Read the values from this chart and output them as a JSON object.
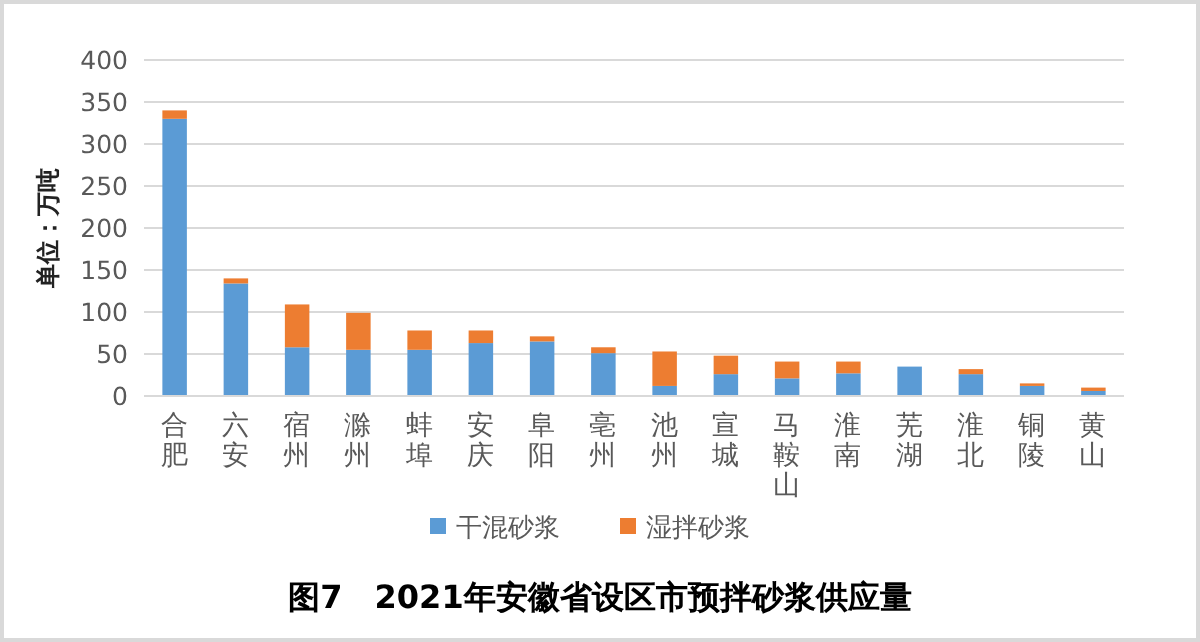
{
  "chart_data": {
    "type": "bar",
    "title": "图7　2021年安徽省设区市预拌砂浆供应量",
    "ylabel": "单位：万吨",
    "categories": [
      "合肥",
      "六安",
      "宿州",
      "滁州",
      "蚌埠",
      "安庆",
      "阜阳",
      "亳州",
      "池州",
      "宣城",
      "马鞍山",
      "淮南",
      "芜湖",
      "淮北",
      "铜陵",
      "黄山"
    ],
    "series": [
      {
        "name": "干混砂浆",
        "color": "#5b9bd5",
        "values": [
          330,
          134,
          58,
          55,
          55,
          63,
          65,
          51,
          12,
          26,
          21,
          27,
          35,
          26,
          12,
          6
        ]
      },
      {
        "name": "湿拌砂浆",
        "color": "#ed7d31",
        "values": [
          10,
          6,
          51,
          44,
          23,
          15,
          6,
          7,
          41,
          22,
          20,
          14,
          0,
          6,
          3,
          4
        ]
      }
    ],
    "stacked": true,
    "ylim": [
      0,
      400
    ],
    "yticks": [
      0,
      50,
      100,
      150,
      200,
      250,
      300,
      350,
      400
    ],
    "grid": "y",
    "legend": "bottom"
  }
}
